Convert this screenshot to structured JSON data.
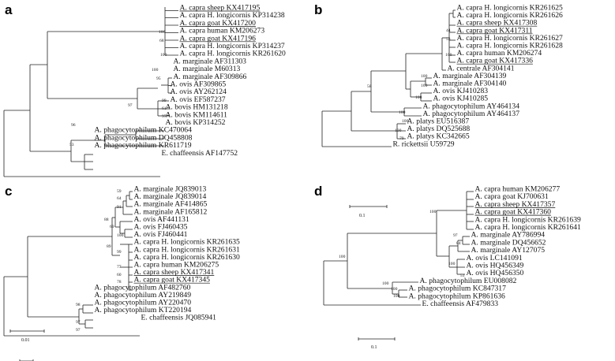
{
  "panels": [
    {
      "id": "a",
      "letter": "a",
      "scale_label": "0.01",
      "taxa": [
        {
          "label": "A. capra sheep KX417195",
          "underline": true
        },
        {
          "label": "A. capra H. longicornis KP314238"
        },
        {
          "label": "A. capra goat KX417200",
          "underline": true
        },
        {
          "label": "A. capra human KM206273"
        },
        {
          "label": "A. capra goat KX417196",
          "underline": true
        },
        {
          "label": "A. capra H. longicornis KP314237"
        },
        {
          "label": "A. capra H. longicornis KR261620"
        },
        {
          "label": "A. marginale AF311303"
        },
        {
          "label": "A. marginale M60313"
        },
        {
          "label": "A. marginale AF309866"
        },
        {
          "label": "A. ovis AF309865"
        },
        {
          "label": "A. ovis AY262124"
        },
        {
          "label": "A. ovis EF587237"
        },
        {
          "label": "A. bovis HM131218"
        },
        {
          "label": "A. bovis KM114611"
        },
        {
          "label": "A. bovis KP314252"
        },
        {
          "label": "A. phagocytophilum KC470064"
        },
        {
          "label": "A. phagocytophilum DQ458808"
        },
        {
          "label": "A. phagocytophilum KR611719"
        },
        {
          "label": "E. chaffeensis AF147752"
        }
      ],
      "bootstraps": [
        "68",
        "100",
        "100",
        "95",
        "99",
        "61",
        "97",
        "100",
        "97",
        "96",
        "53"
      ]
    },
    {
      "id": "b",
      "letter": "b",
      "scale_label": "0.1",
      "taxa": [
        {
          "label": "A. capra H. longicornis KR261625"
        },
        {
          "label": "A. capra H. longicornis KR261626"
        },
        {
          "label": "A. capra sheep KX417308",
          "underline": true
        },
        {
          "label": "A. capra goat KX417311",
          "underline": true
        },
        {
          "label": "A. capra H. longicornis KR261627"
        },
        {
          "label": "A. capra H. longicornis KR261628"
        },
        {
          "label": "A. capra human KM206274"
        },
        {
          "label": "A. capra goat KX417336",
          "underline": true
        },
        {
          "label": "A. centrale AF304141"
        },
        {
          "label": "A. marginale AF304139"
        },
        {
          "label": "A. marginale AF304140"
        },
        {
          "label": "A. ovis KJ410283"
        },
        {
          "label": "A. ovis KJ410285"
        },
        {
          "label": "A. phagocytophilum AY464134"
        },
        {
          "label": "A. phagocytophilum AY464137"
        },
        {
          "label": "A. platys EU516387"
        },
        {
          "label": "A. platys DQ525688"
        },
        {
          "label": "A. platys KC342665"
        },
        {
          "label": "R. rickettsii U59729"
        }
      ],
      "bootstraps": [
        "44",
        "53",
        "100",
        "100",
        "100",
        "100",
        "58",
        "100",
        "100",
        "100",
        "79"
      ]
    },
    {
      "id": "c",
      "letter": "c",
      "scale_label": "0.1",
      "taxa": [
        {
          "label": "A. marginale JQ839013"
        },
        {
          "label": "A. marginale JQ839014"
        },
        {
          "label": "A. marginale AF414865"
        },
        {
          "label": "A. marginale AF165812"
        },
        {
          "label": "A. ovis AF441131"
        },
        {
          "label": "A. ovis FJ460435"
        },
        {
          "label": "A. ovis FJ460441"
        },
        {
          "label": "A. capra H. longicornis KR261635"
        },
        {
          "label": "A. capra H. longicornis KR261631"
        },
        {
          "label": "A. capra H. longicornis KR261630"
        },
        {
          "label": "A. capra human KM206275"
        },
        {
          "label": "A. capra sheep KX417341",
          "underline": true
        },
        {
          "label": "A. capra goat KX417345",
          "underline": true
        },
        {
          "label": "A. phagocytophilum AF482760"
        },
        {
          "label": "A. phagocytophilum AY219849"
        },
        {
          "label": "A. phagocytophilum AY220470"
        },
        {
          "label": "A. phagocytophilum KT220194"
        },
        {
          "label": "E. chaffeensis JQ085941"
        }
      ],
      "bootstraps": [
        "59",
        "64",
        "91",
        "88",
        "69",
        "100",
        "89",
        "99",
        "77",
        "60",
        "78",
        "98",
        "97",
        "97"
      ]
    },
    {
      "id": "d",
      "letter": "d",
      "scale_label": "0.1",
      "taxa": [
        {
          "label": "A. capra human KM206277"
        },
        {
          "label": "A. capra goat KJ700631"
        },
        {
          "label": "A. capra sheep KX417357",
          "underline": true
        },
        {
          "label": "A. capra goat KX417360",
          "underline": true
        },
        {
          "label": "A. capra H. longicornis KR261639"
        },
        {
          "label": "A. capra H. longicornis KR261641"
        },
        {
          "label": "A. marginale AY786994"
        },
        {
          "label": "A. marginale DQ456652"
        },
        {
          "label": "A. marginale AY127075"
        },
        {
          "label": "A. ovis LC141091"
        },
        {
          "label": "A. ovis HQ456349"
        },
        {
          "label": "A. ovis HQ456350"
        },
        {
          "label": "A. phagocytophilum EU008082"
        },
        {
          "label": "A. phagocytophilum KC847317"
        },
        {
          "label": "A. phagocytophilum KP861636"
        },
        {
          "label": "E. chaffeensis AF479833"
        }
      ],
      "bootstraps": [
        "97",
        "84",
        "100",
        "100",
        "51",
        "100",
        "100",
        "100",
        "100"
      ]
    }
  ]
}
